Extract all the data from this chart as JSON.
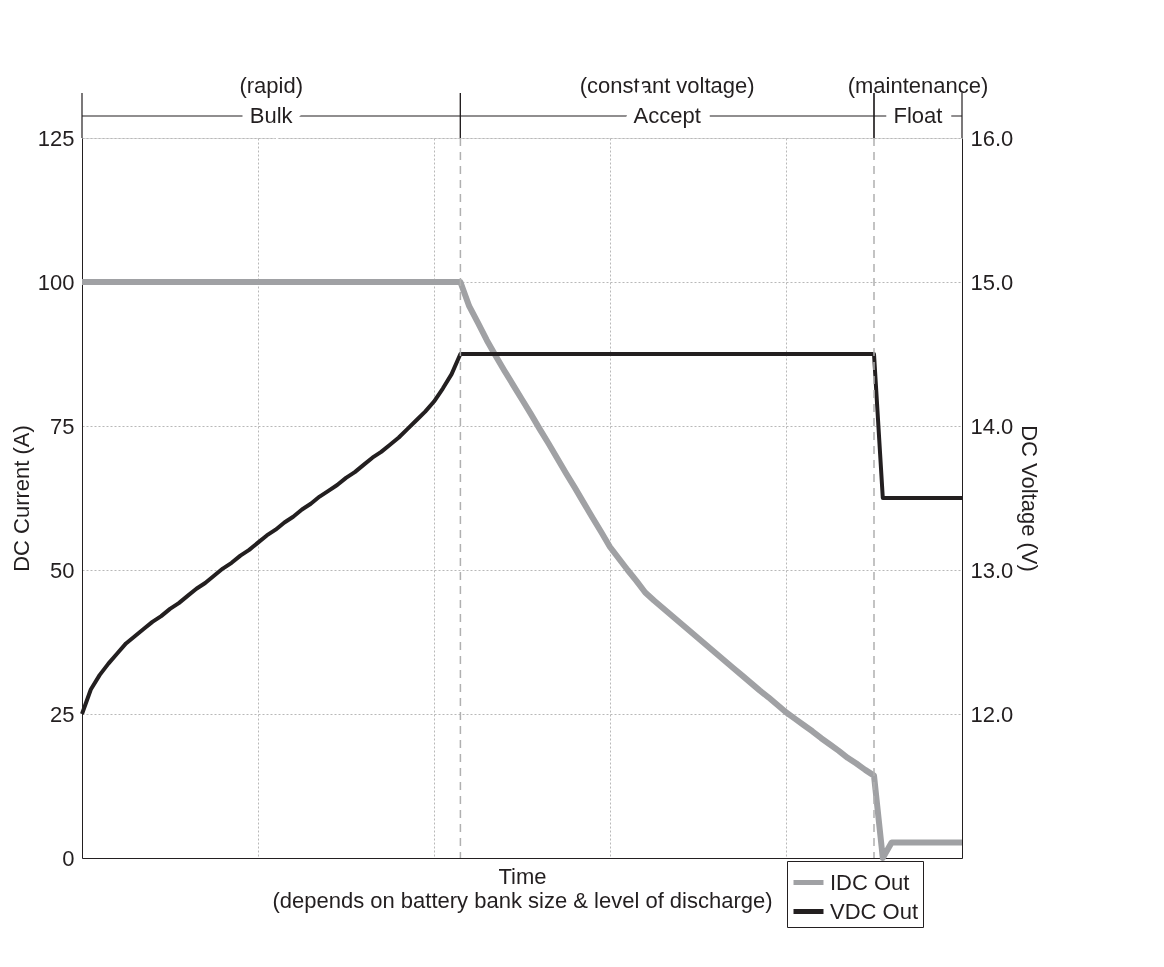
{
  "chart_data": {
    "type": "line",
    "xlabel": "Time\n(depends on battery bank size & level of discharge)",
    "ylabel": "DC Current (A)",
    "y2label": "DC Voltage (V)",
    "categories": [
      null,
      null,
      null,
      null,
      null,
      null,
      null,
      null,
      null,
      null,
      null,
      null,
      null,
      null,
      null,
      null,
      null,
      null,
      null,
      null,
      null,
      null,
      null,
      null,
      null,
      null,
      null,
      null,
      null,
      null,
      null,
      null,
      null,
      null,
      null,
      null,
      null,
      null,
      null,
      null,
      null,
      null,
      null,
      null,
      null,
      null,
      null,
      null,
      null,
      null,
      null,
      null,
      null,
      null,
      null,
      null,
      null,
      null,
      null,
      null,
      null,
      null,
      null,
      null,
      null,
      null,
      null,
      null,
      null,
      null,
      null,
      null,
      null,
      null,
      null,
      null,
      null,
      null,
      null,
      null,
      null,
      null,
      null,
      null,
      null,
      null,
      null,
      null,
      null,
      null,
      null,
      null,
      null,
      null,
      null,
      null,
      null,
      null,
      null,
      null,
      null
    ],
    "ylim": [
      0,
      125
    ],
    "yticks": [
      0,
      25,
      50,
      75,
      100,
      125
    ],
    "y2lim": [
      11,
      16
    ],
    "y2ticks": [
      {
        "value": 12,
        "label": "12.0"
      },
      {
        "value": 13,
        "label": "13.0"
      },
      {
        "value": 14,
        "label": "14.0"
      },
      {
        "value": 15,
        "label": "15.0"
      },
      {
        "value": 16,
        "label": "16.0"
      }
    ],
    "series": [
      {
        "name": "IDC Out",
        "color": "#a0a1a4",
        "values": [
          100,
          100,
          100,
          100,
          100,
          100,
          100,
          100,
          100,
          100,
          100,
          100,
          100,
          100,
          100,
          100,
          100,
          100,
          100,
          100,
          100,
          100,
          100,
          100,
          100,
          100,
          100,
          100,
          100,
          100,
          100,
          100,
          100,
          100,
          100,
          100,
          100,
          100,
          100,
          100,
          100,
          100,
          100,
          100,
          95.8,
          92.9,
          89.9,
          87.2,
          84.6,
          82.1,
          79.6,
          77.1,
          74.5,
          72.0,
          69.4,
          66.8,
          64.3,
          61.7,
          59.1,
          56.6,
          54.0,
          52.0,
          50.0,
          48.1,
          46.1,
          44.7,
          43.4,
          42.1,
          40.8,
          39.5,
          38.2,
          36.9,
          35.6,
          34.3,
          33.0,
          31.7,
          30.4,
          29.1,
          27.9,
          26.6,
          25.3,
          24.2,
          23.1,
          22.0,
          20.8,
          19.7,
          18.6,
          17.4,
          16.4,
          15.3,
          14.3,
          0,
          2.7,
          2.7,
          2.7,
          2.7,
          2.7,
          2.7,
          2.7,
          2.7,
          2.7
        ]
      },
      {
        "name": "VDC Out",
        "color": "#231f20",
        "axis": "y2",
        "values": [
          12.0,
          12.17,
          12.27,
          12.35,
          12.42,
          12.49,
          12.54,
          12.59,
          12.64,
          12.68,
          12.73,
          12.77,
          12.82,
          12.87,
          12.91,
          12.96,
          13.01,
          13.05,
          13.1,
          13.14,
          13.19,
          13.24,
          13.28,
          13.33,
          13.37,
          13.42,
          13.46,
          13.51,
          13.55,
          13.59,
          13.64,
          13.68,
          13.73,
          13.78,
          13.82,
          13.87,
          13.92,
          13.98,
          14.04,
          14.1,
          14.17,
          14.26,
          14.36,
          14.5,
          14.5,
          14.5,
          14.5,
          14.5,
          14.5,
          14.5,
          14.5,
          14.5,
          14.5,
          14.5,
          14.5,
          14.5,
          14.5,
          14.5,
          14.5,
          14.5,
          14.5,
          14.5,
          14.5,
          14.5,
          14.5,
          14.5,
          14.5,
          14.5,
          14.5,
          14.5,
          14.5,
          14.5,
          14.5,
          14.5,
          14.5,
          14.5,
          14.5,
          14.5,
          14.5,
          14.5,
          14.5,
          14.5,
          14.5,
          14.5,
          14.5,
          14.5,
          14.5,
          14.5,
          14.5,
          14.5,
          14.5,
          13.5,
          13.5,
          13.5,
          13.5,
          13.5,
          13.5,
          13.5,
          13.5,
          13.5,
          13.5
        ]
      }
    ],
    "annotations": [
      "(rapid)\nBulk",
      "(constant voltage)\nAccept",
      "(maintenance)\nFloat"
    ],
    "grid": true,
    "legend": "bottom right",
    "marker": "none",
    "line_style": "solid"
  }
}
